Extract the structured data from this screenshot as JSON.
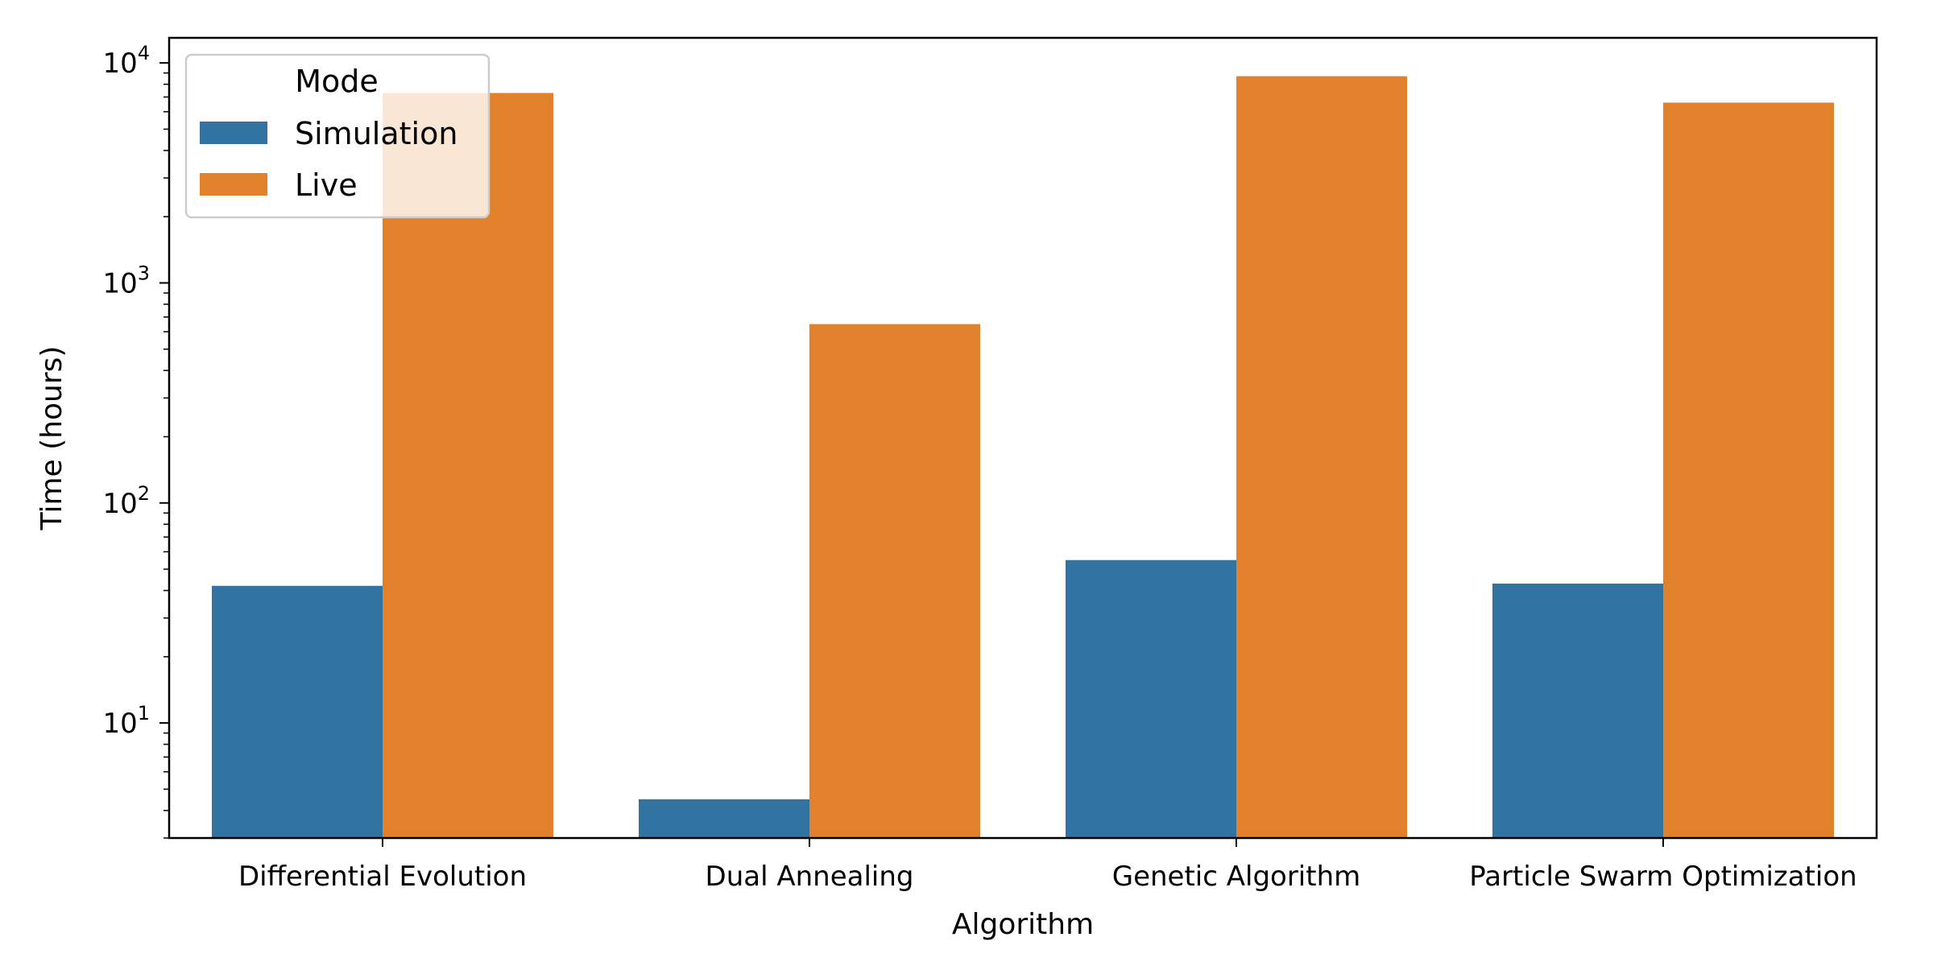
{
  "chart_data": {
    "type": "bar",
    "title": "",
    "xlabel": "Algorithm",
    "ylabel": "Time (hours)",
    "yscale": "log",
    "ylim": [
      3,
      13000
    ],
    "grid": false,
    "categories": [
      "Differential Evolution",
      "Dual Annealing",
      "Genetic Algorithm",
      "Particle Swarm Optimization"
    ],
    "series": [
      {
        "name": "Simulation",
        "color": "#3274a1",
        "values": [
          42,
          4.5,
          55,
          43
        ]
      },
      {
        "name": "Live",
        "color": "#e1812c",
        "values": [
          7300,
          650,
          8700,
          6600
        ]
      }
    ],
    "yticks": [
      {
        "value": 10,
        "base": "10",
        "exp": "1"
      },
      {
        "value": 100,
        "base": "10",
        "exp": "2"
      },
      {
        "value": 1000,
        "base": "10",
        "exp": "3"
      },
      {
        "value": 10000,
        "base": "10",
        "exp": "4"
      }
    ],
    "legend": {
      "title": "Mode",
      "placement": "top-left"
    }
  }
}
